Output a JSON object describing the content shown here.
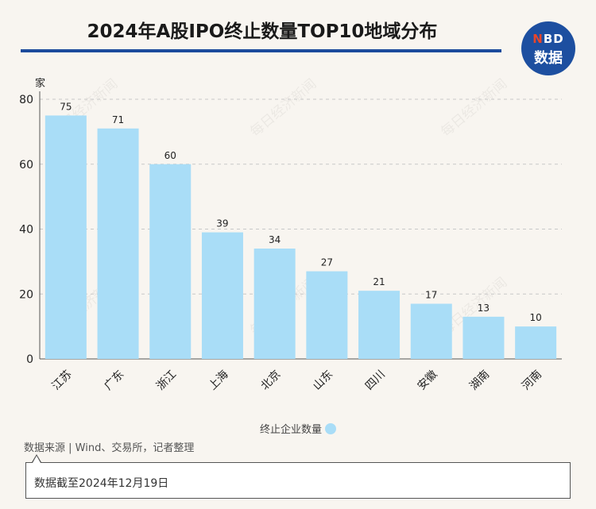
{
  "title": "2024年A股IPO终止数量TOP10地域分布",
  "logo": {
    "line1_n": "N",
    "line1_rest": "BD",
    "line2": "数据"
  },
  "source": "数据来源 | Wind、交易所，记者整理",
  "note": "数据截至2024年12月19日",
  "watermark": "每日经济新闻",
  "colors": {
    "bar": "#a9ddf7",
    "accent": "#1c4b9c"
  },
  "chart_data": {
    "type": "bar",
    "title": "2024年A股IPO终止数量TOP10地域分布",
    "ylabel": "家",
    "xlabel": "",
    "categories": [
      "江苏",
      "广东",
      "浙江",
      "上海",
      "北京",
      "山东",
      "四川",
      "安徽",
      "湖南",
      "河南"
    ],
    "series": [
      {
        "name": "终止企业数量",
        "values": [
          75,
          71,
          60,
          39,
          34,
          27,
          21,
          17,
          13,
          10
        ]
      }
    ],
    "ylim": [
      0,
      80
    ],
    "yticks": [
      0,
      20,
      40,
      60,
      80
    ],
    "grid": true,
    "legend_position": "bottom"
  }
}
